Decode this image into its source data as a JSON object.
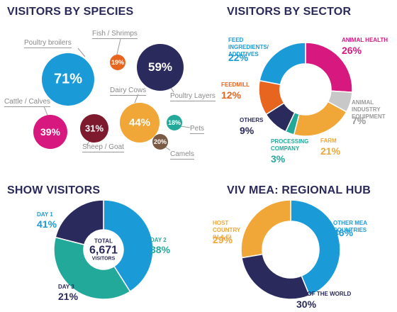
{
  "titles": {
    "species": "VISITORS BY SPECIES",
    "sector": "VISITORS BY SECTOR",
    "show": "SHOW VISITORS",
    "regional": "VIV MEA: REGIONAL HUB"
  },
  "colors": {
    "navy": "#2b2a5c",
    "blue": "#1a9bd7",
    "magenta": "#d6187f",
    "orange": "#e8651f",
    "gold": "#f0a738",
    "teal": "#22a99a",
    "maroon": "#7d1a2e",
    "brown": "#7b5a45",
    "gray": "#c8c8c8"
  },
  "show_center": {
    "label1": "TOTAL",
    "value": "6,671",
    "label2": "VISITORS"
  },
  "chart_data": [
    {
      "type": "bubble",
      "title": "VISITORS BY SPECIES",
      "items": [
        {
          "name": "Poultry broilers",
          "value": "71%",
          "color": "#1a9bd7"
        },
        {
          "name": "Fish / Shrimps",
          "value": "19%",
          "color": "#e8651f"
        },
        {
          "name": "Poultry Layers",
          "value": "59%",
          "color": "#2b2a5c"
        },
        {
          "name": "Dairy Cows",
          "value": "44%",
          "color": "#f0a738"
        },
        {
          "name": "Cattle / Calves",
          "value": "39%",
          "color": "#d6187f"
        },
        {
          "name": "Sheep / Goat",
          "value": "31%",
          "color": "#7d1a2e"
        },
        {
          "name": "Pets",
          "value": "18%",
          "color": "#22a99a"
        },
        {
          "name": "Camels",
          "value": "20%",
          "color": "#7b5a45"
        }
      ]
    },
    {
      "type": "pie",
      "title": "VISITORS BY SECTOR",
      "slices": [
        {
          "name": "ANIMAL HEALTH",
          "value": 26,
          "label": "26%",
          "color": "#d6187f"
        },
        {
          "name": "ANIMAL INDUSTRY EQUIPMENT",
          "value": 7,
          "label": "7%",
          "color": "#c8c8c8"
        },
        {
          "name": "FARM",
          "value": 21,
          "label": "21%",
          "color": "#f0a738"
        },
        {
          "name": "PROCESSING COMPANY",
          "value": 3,
          "label": "3%",
          "color": "#22a99a"
        },
        {
          "name": "OTHERS",
          "value": 9,
          "label": "9%",
          "color": "#2b2a5c"
        },
        {
          "name": "FEEDMILL",
          "value": 12,
          "label": "12%",
          "color": "#e8651f"
        },
        {
          "name": "FEED INGREDIENTS/ ADDITIVES",
          "value": 22,
          "label": "22%",
          "color": "#1a9bd7"
        }
      ]
    },
    {
      "type": "pie",
      "title": "SHOW VISITORS",
      "slices": [
        {
          "name": "DAY 1",
          "value": 41,
          "label": "41%",
          "color": "#1a9bd7"
        },
        {
          "name": "DAY 2",
          "value": 38,
          "label": "38%",
          "color": "#22a99a"
        },
        {
          "name": "DAY 3",
          "value": 21,
          "label": "21%",
          "color": "#2b2a5c"
        }
      ]
    },
    {
      "type": "pie",
      "title": "VIV MEA: REGIONAL HUB",
      "slices": [
        {
          "name": "OTHER MEA COUNTRIES",
          "value": 46,
          "label": "46%",
          "color": "#1a9bd7"
        },
        {
          "name": "REST OF THE WORLD",
          "value": 30,
          "label": "30%",
          "color": "#2b2a5c"
        },
        {
          "name": "HOST COUNTRY (U.A.E)",
          "value": 29,
          "label": "29%",
          "color": "#f0a738"
        }
      ]
    }
  ]
}
